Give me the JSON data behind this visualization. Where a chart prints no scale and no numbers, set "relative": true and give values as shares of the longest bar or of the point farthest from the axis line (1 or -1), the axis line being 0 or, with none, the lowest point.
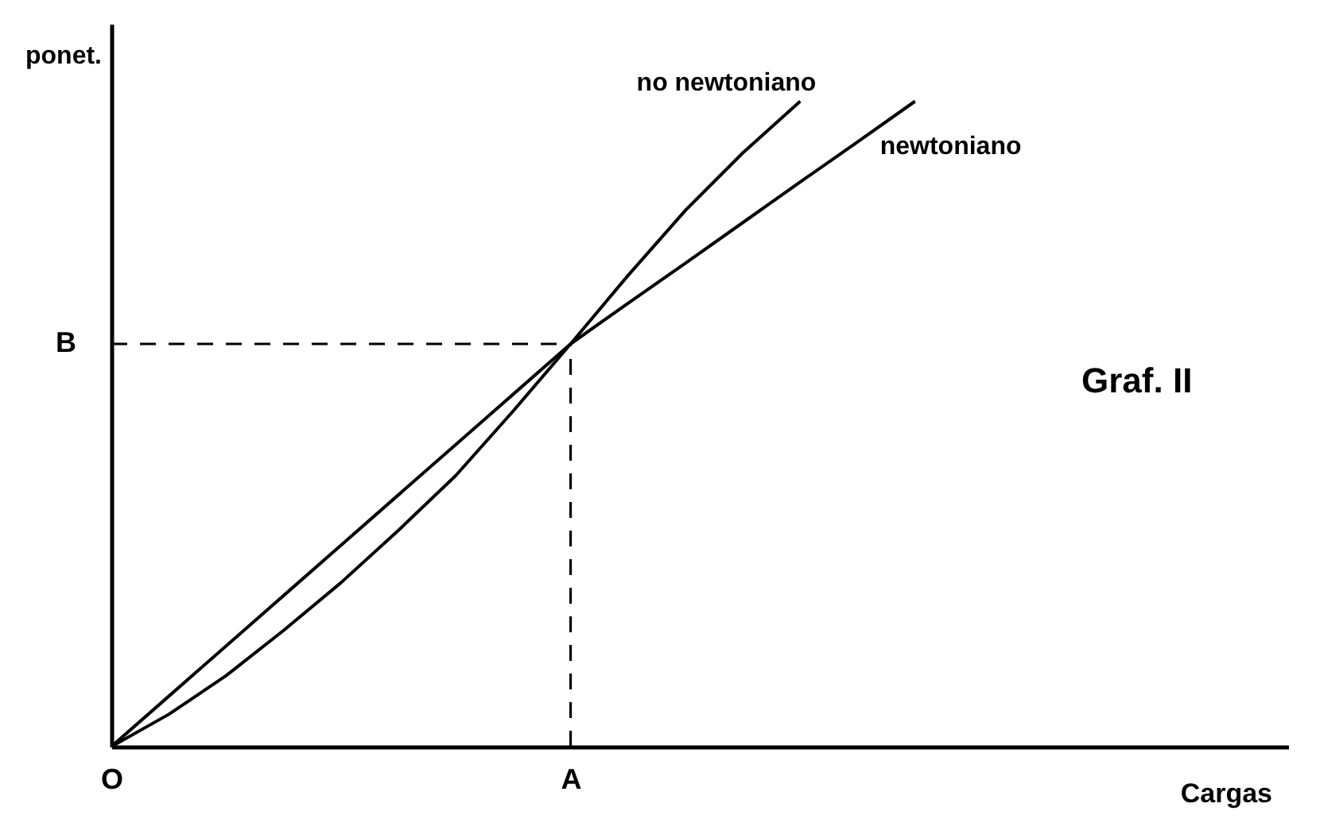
{
  "chart_data": {
    "type": "line",
    "relative": true,
    "xlabel": "Cargas",
    "ylabel": "ponet.",
    "annotations": [
      "Graf. II"
    ],
    "categories": [
      "O",
      null,
      null,
      null,
      null,
      null,
      null,
      null,
      "A",
      null,
      null,
      null,
      null,
      null,
      null,
      null,
      null,
      null,
      null,
      null,
      null
    ],
    "tick_labels": "x",
    "grid": false,
    "marker": "none",
    "ref_lines": [
      {
        "axis": "y",
        "value": 0.624,
        "label": "B",
        "color": "#000000",
        "line_style": "dashed"
      },
      {
        "axis": "x",
        "value": "A",
        "color": "#000000",
        "line_style": "dashed"
      }
    ],
    "series": [
      {
        "name": "no newtoniano",
        "color": "#000000",
        "line_style": "solid",
        "values": [
          0,
          0.05,
          0.11,
          0.18,
          0.254,
          0.335,
          0.42,
          0.52,
          0.624,
          0.73,
          0.831,
          0.92,
          1,
          null,
          null,
          null,
          null,
          null,
          null,
          null,
          null
        ]
      },
      {
        "name": "newtoniano",
        "color": "#000000",
        "line_style": "solid",
        "values": [
          0,
          0.078,
          0.156,
          0.234,
          0.312,
          0.39,
          0.468,
          0.546,
          0.624,
          0.687,
          0.749,
          0.812,
          0.875,
          0.937,
          1,
          null,
          null,
          null,
          null,
          null,
          null
        ]
      }
    ]
  }
}
